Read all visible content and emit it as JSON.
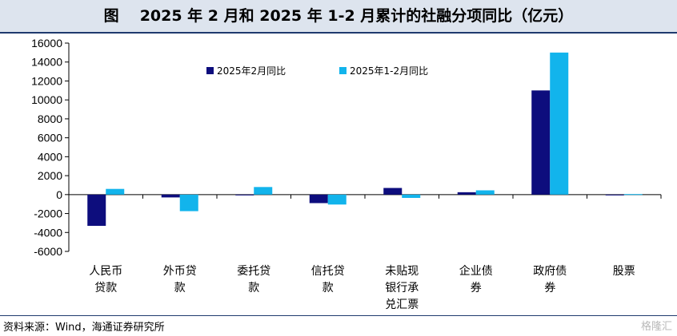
{
  "title": {
    "prefix": "图",
    "text": "2025 年 2 月和 2025 年 1-2 月累计的社融分项同比（亿元）"
  },
  "source": "资料来源：Wind，海通证券研究所",
  "watermark": "格隆汇",
  "colors": {
    "series_1": "#0d0d7d",
    "series_2": "#12b4ec",
    "axis": "#000000"
  },
  "chart_data": {
    "type": "bar",
    "categories": [
      [
        "人民币",
        "贷款"
      ],
      [
        "外币贷",
        "款"
      ],
      [
        "委托贷",
        "款"
      ],
      [
        "信托贷",
        "款"
      ],
      [
        "未贴现",
        "银行承",
        "兑汇票"
      ],
      [
        "企业债",
        "券"
      ],
      [
        "政府债",
        "券"
      ],
      [
        "股票"
      ]
    ],
    "series": [
      {
        "name": "2025年2月同比",
        "values": [
          -3300,
          -300,
          -30,
          -900,
          700,
          250,
          11000,
          -20
        ]
      },
      {
        "name": "2025年1-2月同比",
        "values": [
          600,
          -1750,
          800,
          -1050,
          -350,
          450,
          15000,
          50
        ]
      }
    ],
    "ylim": [
      -6000,
      16000
    ],
    "yticks": [
      -6000,
      -4000,
      -2000,
      0,
      2000,
      4000,
      6000,
      8000,
      10000,
      12000,
      14000,
      16000
    ],
    "legend_position": "top-left",
    "grid": false
  }
}
